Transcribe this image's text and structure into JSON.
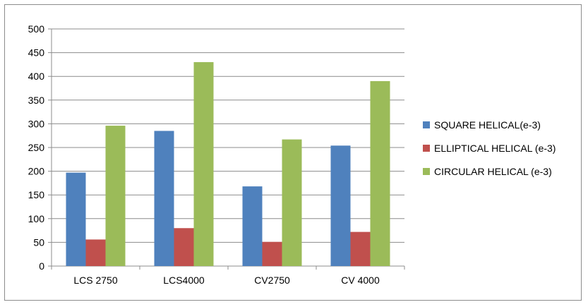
{
  "chart_data": {
    "type": "bar",
    "categories": [
      "LCS 2750",
      "LCS4000",
      "CV2750",
      "CV 4000"
    ],
    "series": [
      {
        "name": "SQUARE HELICAL(e-3)",
        "color": "#4f81bd",
        "values": [
          197,
          285,
          168,
          254
        ]
      },
      {
        "name": "ELLIPTICAL HELICAL (e-3)",
        "color": "#c0504d",
        "values": [
          56,
          80,
          51,
          72
        ]
      },
      {
        "name": "CIRCULAR HELICAL (e-3)",
        "color": "#9bbb59",
        "values": [
          296,
          430,
          267,
          390
        ]
      }
    ],
    "ylim": [
      0,
      500
    ],
    "yticks": [
      "0",
      "50",
      "100",
      "150",
      "200",
      "250",
      "300",
      "350",
      "400",
      "450",
      "500"
    ],
    "grid": true,
    "legend_position": "right",
    "title": "",
    "xlabel": "",
    "ylabel": ""
  }
}
